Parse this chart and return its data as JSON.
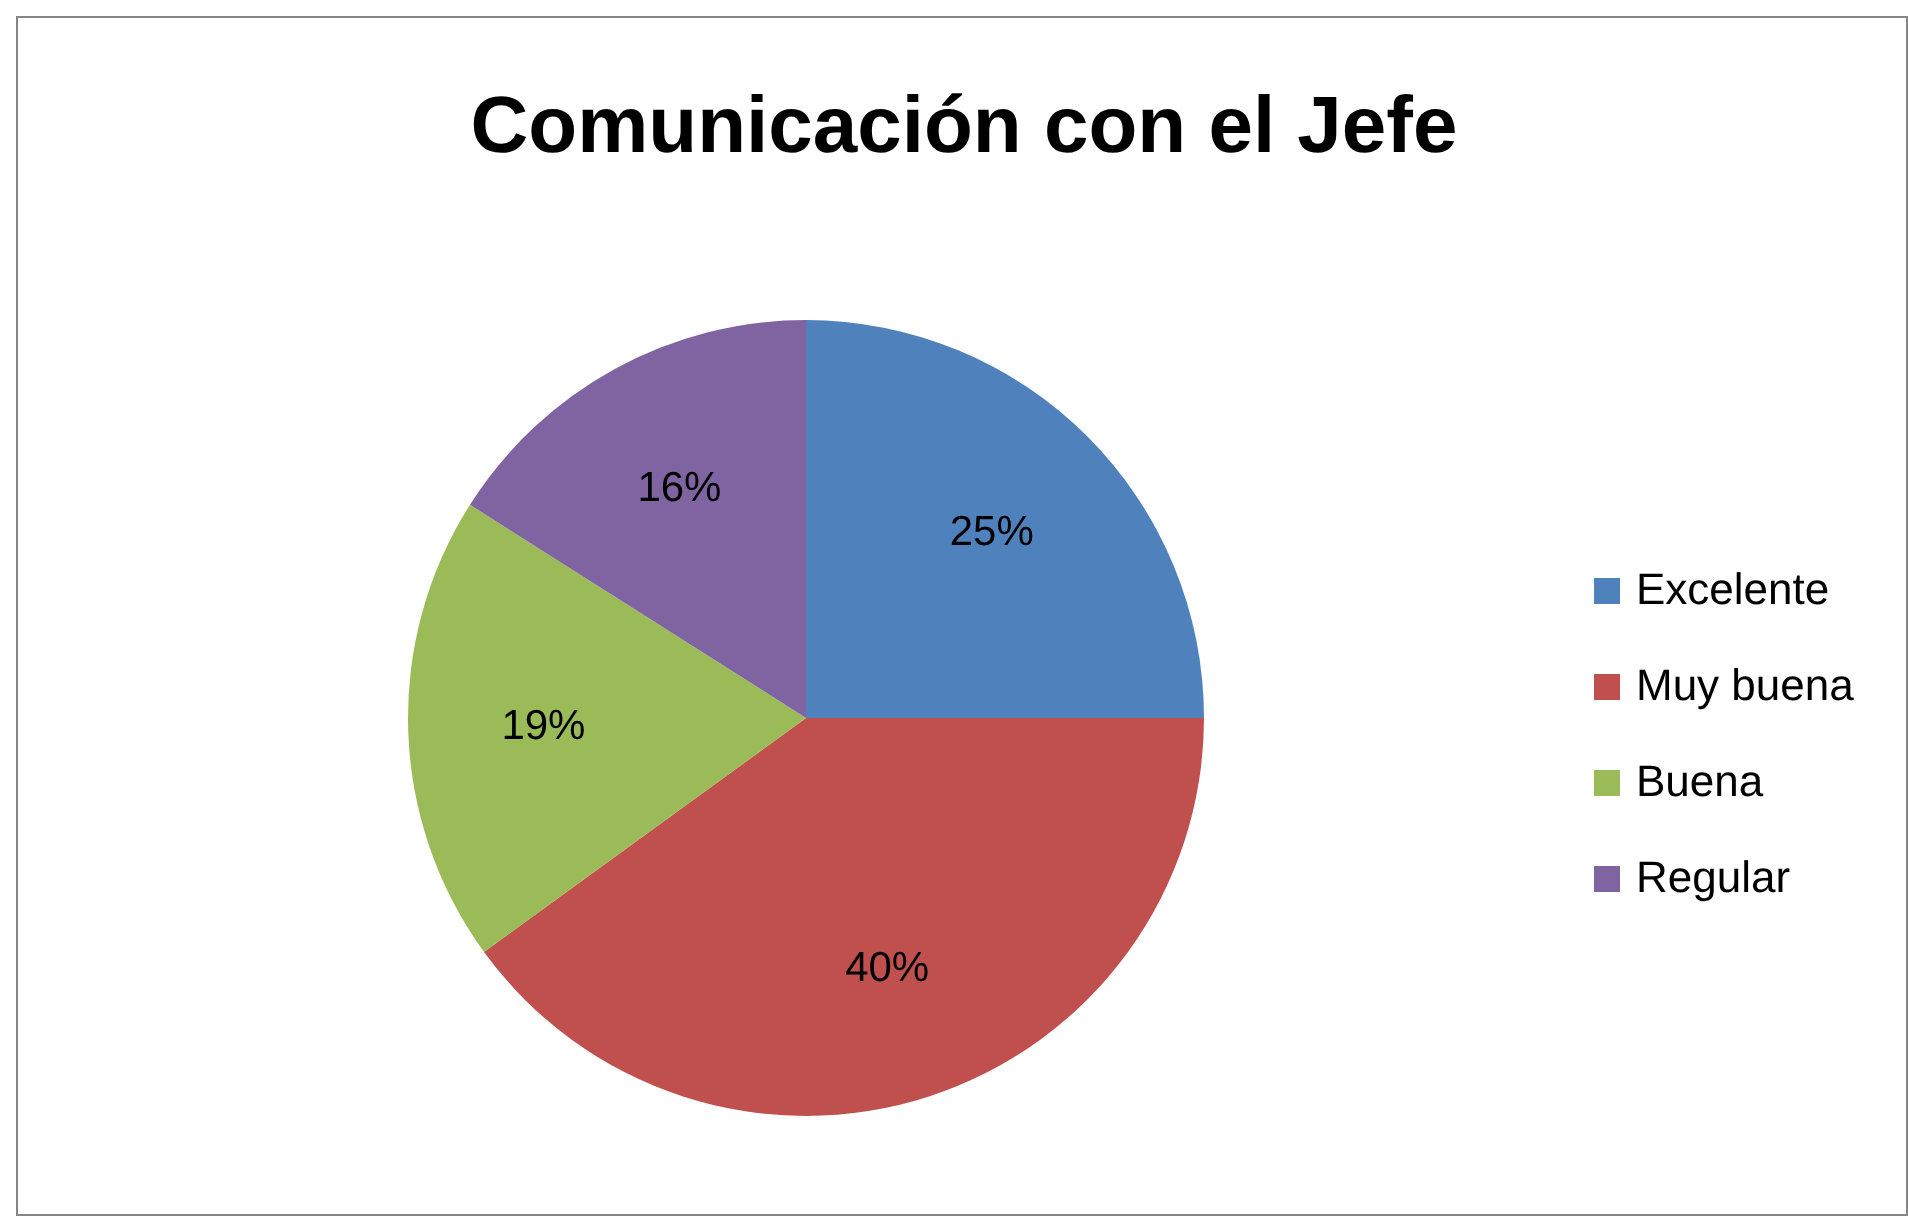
{
  "chart_data": {
    "type": "pie",
    "title": "Comunicación con el Jefe",
    "categories": [
      "Excelente",
      "Muy buena",
      "Buena",
      "Regular"
    ],
    "values": [
      25,
      40,
      19,
      16
    ],
    "value_labels": [
      "25%",
      "40%",
      "19%",
      "16%"
    ],
    "colors": [
      "#4f81bd",
      "#c0504d",
      "#9bbb59",
      "#8064a2"
    ],
    "legend": "right"
  }
}
